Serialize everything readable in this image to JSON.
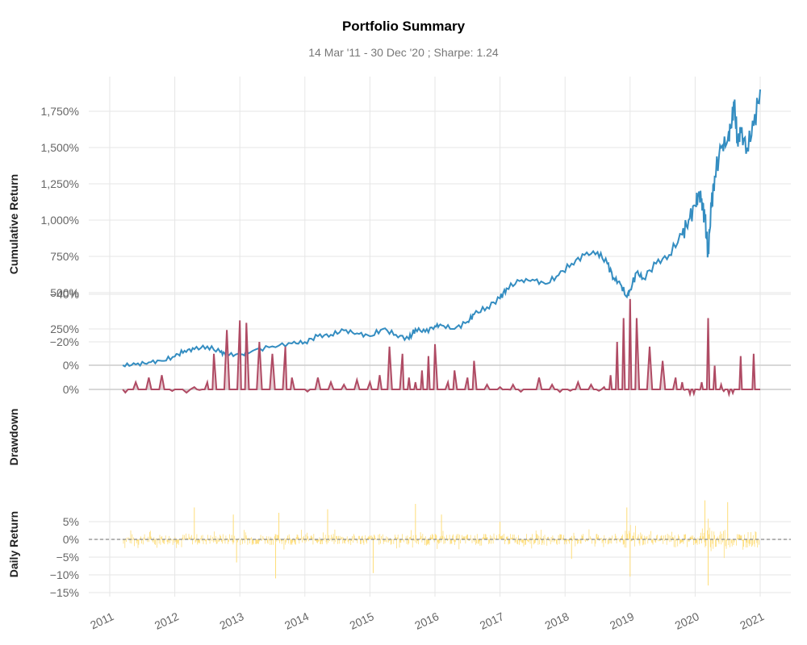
{
  "chart_data": {
    "type": "line",
    "title": "Portfolio Summary",
    "subtitle": "14 Mar '11 - 30 Dec '20 ;  Sharpe: 1.24",
    "grid": true,
    "x_ticks": [
      "2011",
      "2012",
      "2013",
      "2014",
      "2015",
      "2016",
      "2017",
      "2018",
      "2019",
      "2020",
      "2021"
    ],
    "colors": {
      "cumulative": "#348dc1",
      "drawdown": "#af4b64",
      "drawdown_fill": "#e8cbd2",
      "daily": "#fedd78",
      "zero_line": "#888888"
    },
    "panels": [
      {
        "name": "cumulative_return",
        "ylabel": "Cumulative Return",
        "ylim": [
          -60,
          1980
        ],
        "y_ticks": [
          "0%",
          "250%",
          "500%",
          "750%",
          "1,000%",
          "1,250%",
          "1,500%",
          "1,750%"
        ],
        "series": {
          "x": [
            2011.2,
            2011.4,
            2011.6,
            2011.8,
            2012.0,
            2012.15,
            2012.3,
            2012.5,
            2012.7,
            2012.8,
            2013.0,
            2013.2,
            2013.5,
            2013.8,
            2014.0,
            2014.2,
            2014.4,
            2014.6,
            2014.8,
            2015.0,
            2015.2,
            2015.4,
            2015.6,
            2015.7,
            2015.85,
            2016.0,
            2016.1,
            2016.3,
            2016.5,
            2016.6,
            2016.8,
            2017.0,
            2017.1,
            2017.3,
            2017.5,
            2017.7,
            2017.9,
            2018.1,
            2018.3,
            2018.5,
            2018.65,
            2018.75,
            2018.85,
            2018.95,
            2019.0,
            2019.1,
            2019.2,
            2019.4,
            2019.6,
            2019.8,
            2019.9,
            2020.0,
            2020.05,
            2020.1,
            2020.15,
            2020.2,
            2020.25,
            2020.3,
            2020.4,
            2020.5,
            2020.55,
            2020.6,
            2020.65,
            2020.7,
            2020.8,
            2020.9,
            2021.0
          ],
          "values": [
            0,
            5,
            20,
            30,
            60,
            100,
            110,
            130,
            90,
            75,
            70,
            100,
            130,
            150,
            160,
            200,
            210,
            240,
            220,
            200,
            250,
            210,
            180,
            250,
            230,
            270,
            275,
            250,
            300,
            350,
            400,
            460,
            530,
            580,
            590,
            560,
            620,
            700,
            760,
            780,
            700,
            600,
            560,
            470,
            520,
            640,
            600,
            700,
            760,
            900,
            1000,
            1100,
            1170,
            1150,
            1000,
            780,
            1100,
            1300,
            1500,
            1550,
            1650,
            1800,
            1550,
            1600,
            1500,
            1650,
            1900
          ]
        }
      },
      {
        "name": "drawdown",
        "ylabel": "Drawdown",
        "ylim": [
          -40,
          1
        ],
        "y_ticks": [
          "0%",
          "−20%",
          "−40%"
        ],
        "series": {
          "x": [
            2011.2,
            2011.4,
            2011.6,
            2011.8,
            2012.0,
            2012.3,
            2012.5,
            2012.6,
            2012.8,
            2013.0,
            2013.1,
            2013.3,
            2013.5,
            2013.7,
            2013.8,
            2014.0,
            2014.2,
            2014.4,
            2014.6,
            2014.8,
            2015.0,
            2015.15,
            2015.3,
            2015.5,
            2015.6,
            2015.7,
            2015.8,
            2015.9,
            2016.0,
            2016.2,
            2016.3,
            2016.5,
            2016.6,
            2016.8,
            2017.0,
            2017.2,
            2017.4,
            2017.6,
            2017.8,
            2018.0,
            2018.2,
            2018.4,
            2018.6,
            2018.7,
            2018.8,
            2018.9,
            2019.0,
            2019.1,
            2019.3,
            2019.5,
            2019.7,
            2019.8,
            2019.9,
            2020.0,
            2020.1,
            2020.2,
            2020.3,
            2020.4,
            2020.5,
            2020.6,
            2020.7,
            2020.8,
            2020.9,
            2021.0
          ],
          "values": [
            0,
            -3,
            -5,
            -6,
            0,
            -1,
            -3,
            -15,
            -25,
            -29,
            -28,
            -20,
            -15,
            -18,
            -5,
            0,
            -5,
            -3,
            -2,
            -4,
            -3,
            -6,
            -18,
            -15,
            -5,
            -3,
            -8,
            -14,
            -19,
            -3,
            -8,
            -5,
            -12,
            -2,
            -1,
            -2,
            0,
            -5,
            -2,
            0,
            -3,
            -2,
            -1,
            -6,
            -20,
            -30,
            -38,
            -30,
            -18,
            -12,
            -5,
            -3,
            0,
            0,
            -3,
            -30,
            -10,
            -2,
            0,
            0,
            -14,
            0,
            -15,
            0
          ]
        }
      },
      {
        "name": "daily_return",
        "ylabel": "Daily Return",
        "ylim": [
          -15,
          10
        ],
        "y_ticks": [
          "5%",
          "0%",
          "−5%",
          "−10%",
          "−15%"
        ],
        "spikes": [
          {
            "x": 2012.3,
            "y": 9.0
          },
          {
            "x": 2012.9,
            "y": 7.0
          },
          {
            "x": 2012.95,
            "y": -6.5
          },
          {
            "x": 2013.6,
            "y": 7.5
          },
          {
            "x": 2013.55,
            "y": -11.0
          },
          {
            "x": 2014.35,
            "y": 8.5
          },
          {
            "x": 2015.05,
            "y": -9.5
          },
          {
            "x": 2015.7,
            "y": 10.0
          },
          {
            "x": 2016.1,
            "y": 7.0
          },
          {
            "x": 2017.0,
            "y": 5.0
          },
          {
            "x": 2018.1,
            "y": -5.5
          },
          {
            "x": 2018.95,
            "y": 9.0
          },
          {
            "x": 2019.0,
            "y": -10.5
          },
          {
            "x": 2020.15,
            "y": 11.0
          },
          {
            "x": 2020.2,
            "y": -13.0
          },
          {
            "x": 2020.5,
            "y": 10.5
          }
        ]
      }
    ]
  }
}
